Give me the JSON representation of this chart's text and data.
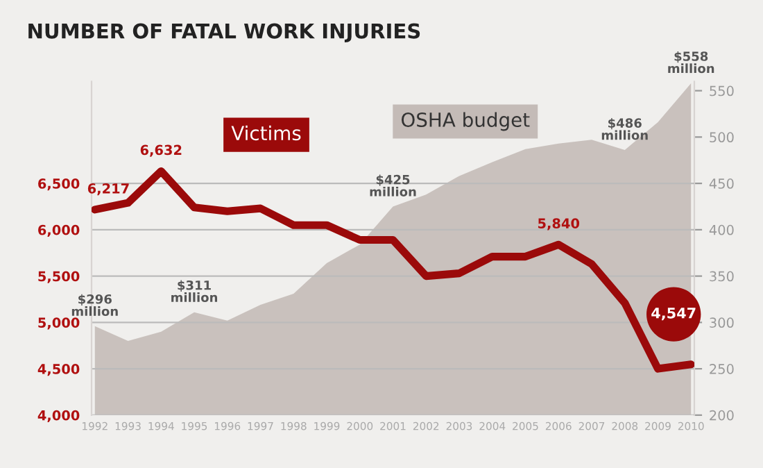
{
  "chart_data": {
    "type": "line",
    "title": "NUMBER OF FATAL WORK INJURIES",
    "categories": [
      "1992",
      "1993",
      "1994",
      "1995",
      "1996",
      "1997",
      "1998",
      "1999",
      "2000",
      "2001",
      "2002",
      "2003",
      "2004",
      "2005",
      "2006",
      "2007",
      "2008",
      "2009",
      "2010"
    ],
    "series": [
      {
        "name": "OSHA budget",
        "type": "area",
        "axis": "y2",
        "color": "#c4bbb7",
        "values": [
          296,
          280,
          290,
          311,
          302,
          319,
          331,
          364,
          384,
          425,
          438,
          458,
          473,
          487,
          493,
          497,
          486,
          516,
          558
        ],
        "value_labels": [
          "$296 million",
          null,
          null,
          "$311 million",
          null,
          null,
          null,
          null,
          null,
          "$425 million",
          null,
          null,
          null,
          null,
          null,
          null,
          "$486 million",
          null,
          "$558 million"
        ]
      },
      {
        "name": "Victims",
        "type": "line",
        "axis": "y",
        "color": "#9b0a0a",
        "values": [
          6217,
          6290,
          6632,
          6240,
          6200,
          6230,
          6050,
          6050,
          5890,
          5890,
          5500,
          5530,
          5710,
          5710,
          5840,
          5630,
          5210,
          4500,
          4547
        ],
        "value_labels": [
          "6,217",
          null,
          "6,632",
          null,
          null,
          null,
          null,
          null,
          null,
          null,
          null,
          null,
          null,
          null,
          "5,840",
          null,
          null,
          null,
          "4,547"
        ]
      }
    ],
    "ylim": [
      4000,
      7600
    ],
    "yticks": [
      {
        "value": 4000,
        "label": "4,000"
      },
      {
        "value": 4500,
        "label": "4,500"
      },
      {
        "value": 5000,
        "label": "5,000"
      },
      {
        "value": 5500,
        "label": "5,500"
      },
      {
        "value": 6000,
        "label": "6,000"
      },
      {
        "value": 6500,
        "label": "6,500"
      }
    ],
    "y2lim": [
      200,
      560
    ],
    "y2ticks": [
      200,
      250,
      300,
      350,
      400,
      450,
      500,
      550
    ],
    "grid": "y",
    "legend": false
  }
}
